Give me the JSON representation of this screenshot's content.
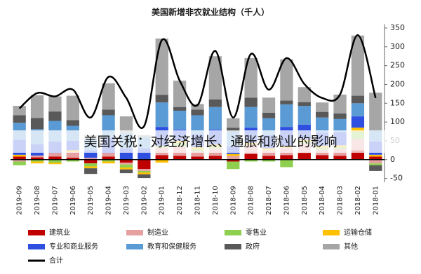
{
  "chart_data": {
    "type": "stacked-bar-line",
    "title": "美国新增非农就业结构（千人）",
    "annotation": "美国关税：对经济增长、通胀和就业的影响",
    "categories": [
      "2019-09",
      "2019-08",
      "2019-07",
      "2019-06",
      "2019-05",
      "2019-04",
      "2019-03",
      "2019-02",
      "2019-01",
      "2018-12",
      "2018-11",
      "2018-10",
      "2018-09",
      "2018-08",
      "2018-07",
      "2018-06",
      "2018-05",
      "2018-04",
      "2018-03",
      "2018-02",
      "2018-01"
    ],
    "ylim": [
      -60,
      360
    ],
    "yticks": [
      -50,
      0,
      50,
      100,
      150,
      200,
      250,
      300,
      350
    ],
    "series": [
      {
        "name": "建筑业",
        "color": "#c00000",
        "values": [
          8,
          6,
          8,
          5,
          -10,
          8,
          -8,
          -25,
          12,
          10,
          8,
          10,
          -5,
          15,
          10,
          12,
          18,
          12,
          10,
          25,
          8
        ]
      },
      {
        "name": "制造业",
        "color": "#e6a0a0",
        "values": [
          -5,
          5,
          10,
          15,
          5,
          10,
          -5,
          -5,
          20,
          25,
          15,
          20,
          10,
          25,
          15,
          20,
          25,
          15,
          18,
          30,
          -10
        ]
      },
      {
        "name": "零售业",
        "color": "#8fcf4f",
        "values": [
          -10,
          -5,
          -8,
          -5,
          -8,
          -5,
          -8,
          -4,
          5,
          10,
          5,
          5,
          -20,
          -5,
          -5,
          -20,
          5,
          5,
          5,
          20,
          -5
        ]
      },
      {
        "name": "运输仓储",
        "color": "#ffc000",
        "values": [
          5,
          -5,
          -4,
          5,
          -5,
          -5,
          -5,
          -5,
          -8,
          5,
          5,
          5,
          5,
          5,
          5,
          5,
          5,
          5,
          5,
          10,
          5
        ]
      },
      {
        "name": "专业和商业服务",
        "color": "#2f4fe0",
        "values": [
          40,
          30,
          30,
          25,
          20,
          40,
          30,
          30,
          50,
          30,
          35,
          40,
          20,
          40,
          35,
          50,
          40,
          35,
          35,
          30,
          35
        ]
      },
      {
        "name": "教育和保健服务",
        "color": "#5b9bd5",
        "values": [
          45,
          40,
          55,
          40,
          30,
          60,
          40,
          30,
          65,
          50,
          50,
          60,
          40,
          55,
          45,
          60,
          50,
          40,
          35,
          35,
          30
        ]
      },
      {
        "name": "政府",
        "color": "#595959",
        "values": [
          20,
          30,
          25,
          15,
          -15,
          15,
          -10,
          -10,
          20,
          10,
          15,
          20,
          10,
          25,
          15,
          10,
          10,
          15,
          15,
          20,
          -15
        ]
      },
      {
        "name": "其他",
        "color": "#a6a6a6",
        "values": [
          25,
          60,
          40,
          65,
          10,
          70,
          45,
          5,
          150,
          70,
          15,
          115,
          25,
          105,
          40,
          110,
          40,
          25,
          50,
          160,
          100
        ]
      }
    ],
    "total": {
      "name": "合计",
      "color": "#000000",
      "values": [
        136,
        177,
        168,
        186,
        112,
        220,
        164,
        89,
        318,
        210,
        145,
        289,
        112,
        281,
        186,
        270,
        201,
        164,
        173,
        331,
        164
      ]
    }
  }
}
